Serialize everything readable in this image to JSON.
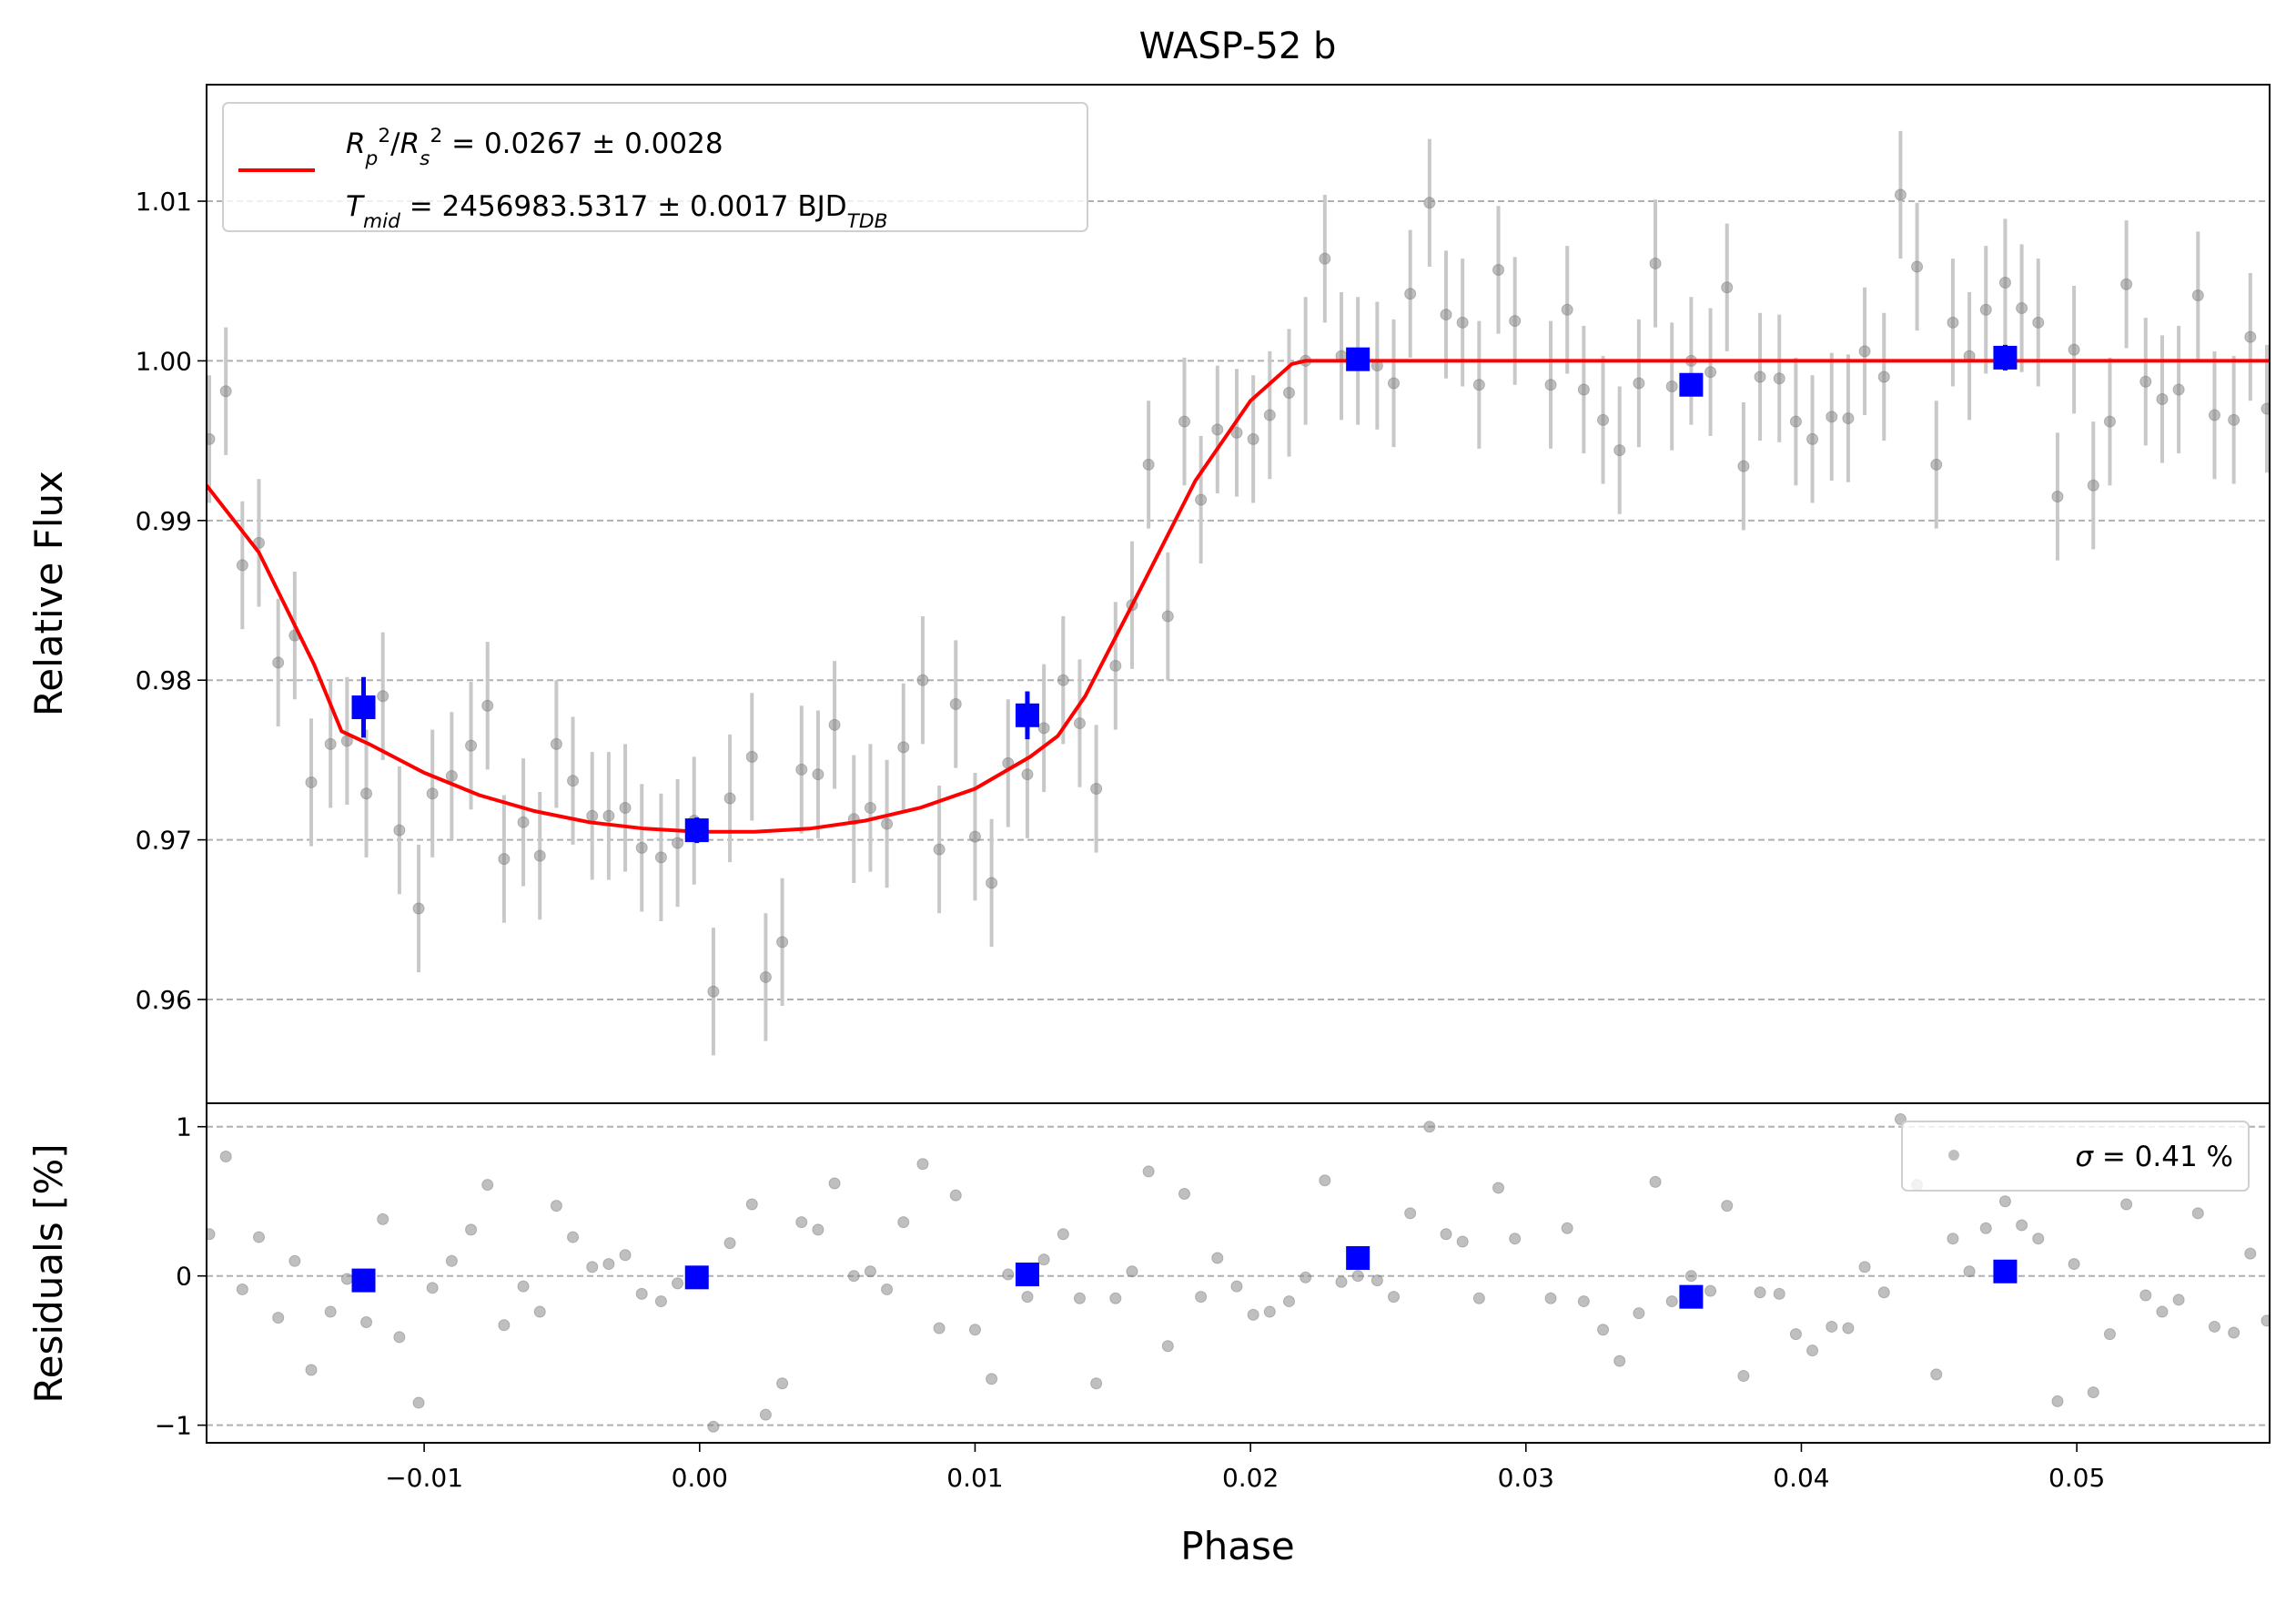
{
  "chart_data": [
    {
      "type": "scatter",
      "title": "WASP-52 b",
      "ylabel": "Relative Flux",
      "xlim": [
        -0.0179,
        0.057
      ],
      "ylim": [
        0.9535,
        1.0173
      ],
      "yticks": [
        {
          "value": 0.96,
          "label": "0.96"
        },
        {
          "value": 0.97,
          "label": "0.97"
        },
        {
          "value": 0.98,
          "label": "0.98"
        },
        {
          "value": 0.99,
          "label": "0.99"
        },
        {
          "value": 1.0,
          "label": "1.00"
        },
        {
          "value": 1.01,
          "label": "1.01"
        }
      ],
      "grid": true,
      "legend": "upper left",
      "series": [
        {
          "color": "#808080",
          "error": 0.004,
          "x": [
            -0.0178,
            -0.0172,
            -0.0166,
            -0.016,
            -0.0153,
            -0.0147,
            -0.0141,
            -0.0134,
            -0.0128,
            -0.0121,
            -0.0115,
            -0.0109,
            -0.0102,
            -0.0097,
            -0.009,
            -0.0083,
            -0.0077,
            -0.0071,
            -0.0064,
            -0.0058,
            -0.0052,
            -0.0046,
            -0.0039,
            -0.0033,
            -0.0027,
            -0.0021,
            -0.0014,
            -0.0008,
            -0.0002,
            0.0005,
            0.0011,
            0.0019,
            0.0024,
            0.003,
            0.0037,
            0.0043,
            0.0049,
            0.0056,
            0.0062,
            0.0068,
            0.0074,
            0.0081,
            0.0087,
            0.0093,
            0.01,
            0.0106,
            0.0112,
            0.0119,
            0.0125,
            0.0132,
            0.0138,
            0.0144,
            0.0151,
            0.0157,
            0.0163,
            0.017,
            0.0176,
            0.0182,
            0.0188,
            0.0195,
            0.0201,
            0.0207,
            0.0214,
            0.022,
            0.0227,
            0.0233,
            0.0239,
            0.0246,
            0.0252,
            0.0258,
            0.0265,
            0.0271,
            0.0277,
            0.0283,
            0.029,
            0.0296,
            0.0309,
            0.0315,
            0.0321,
            0.0328,
            0.0334,
            0.0341,
            0.0347,
            0.0353,
            0.036,
            0.0367,
            0.0373,
            0.0379,
            0.0385,
            0.0392,
            0.0398,
            0.0404,
            0.0411,
            0.0417,
            0.0423,
            0.043,
            0.0436,
            0.0442,
            0.0449,
            0.0455,
            0.0461,
            0.0467,
            0.0474,
            0.048,
            0.0486,
            0.0493,
            0.0499,
            0.0506,
            0.0512,
            0.0518,
            0.0525,
            0.0531,
            0.0537,
            0.0544,
            0.055,
            0.0557,
            0.0563,
            0.0569
          ],
          "values": [
            0.9951,
            0.9981,
            0.9872,
            0.9886,
            0.9811,
            0.9828,
            0.9736,
            0.976,
            0.9762,
            0.9729,
            0.979,
            0.9706,
            0.9657,
            0.9729,
            0.974,
            0.9759,
            0.9784,
            0.9688,
            0.9711,
            0.969,
            0.976,
            0.9737,
            0.9715,
            0.9715,
            0.972,
            0.9695,
            0.9689,
            0.9698,
            0.9712,
            0.9605,
            0.9726,
            0.9752,
            0.9614,
            0.9636,
            0.9744,
            0.9741,
            0.9772,
            0.9713,
            0.972,
            0.971,
            0.9758,
            0.98,
            0.9694,
            0.9785,
            0.9702,
            0.9673,
            0.9748,
            0.9741,
            0.977,
            0.98,
            0.9773,
            0.9732,
            0.9809,
            0.9847,
            0.9935,
            0.984,
            0.9962,
            0.9913,
            0.9957,
            0.9955,
            0.9951,
            0.9966,
            0.998,
            1.0,
            1.0064,
            1.0003,
            1.0,
            0.9997,
            0.9986,
            1.0042,
            1.0099,
            1.0029,
            1.0024,
            0.9985,
            1.0057,
            1.0025,
            0.9985,
            1.0032,
            0.9982,
            0.9963,
            0.9944,
            0.9986,
            1.0061,
            0.9984,
            1.0,
            0.9993,
            1.0046,
            0.9934,
            0.999,
            0.9989,
            0.9962,
            0.9951,
            0.9965,
            0.9964,
            1.0006,
            0.999,
            1.0104,
            1.0059,
            0.9935,
            1.0024,
            1.0003,
            1.0032,
            1.0049,
            1.0033,
            1.0024,
            0.9915,
            1.0007,
            0.9922,
            0.9962,
            1.0048,
            0.9987,
            0.9976,
            0.9982,
            1.0041,
            0.9966,
            0.9963,
            1.0015,
            0.997
          ]
        },
        {
          "color": "#0000ff",
          "x": [
            -0.0122,
            -0.0001,
            0.0119,
            0.0239,
            0.036,
            0.0474
          ],
          "values": [
            0.9783,
            0.9706,
            0.9778,
            1.0001,
            0.9985,
            1.0002
          ],
          "errors": [
            0.0019,
            0.0008,
            0.0015,
            0.0007,
            0.0007,
            0.0008
          ]
        },
        {
          "type": "line",
          "color": "#ff0000",
          "name": [
            [
              {
                "text": "R",
                "font": "italic"
              },
              {
                "text": "p",
                "font": "italic",
                "shift": "sub"
              },
              {
                "text": "2",
                "shift": "super"
              },
              {
                "text": "/"
              },
              {
                "text": "R",
                "font": "italic"
              },
              {
                "text": "s",
                "font": "italic",
                "shift": "sub"
              },
              {
                "text": "2",
                "shift": "super"
              },
              {
                "text": " = 0.0267 ± 0.0028"
              }
            ],
            [
              {
                "text": "T",
                "font": "italic"
              },
              {
                "text": "mid",
                "font": "italic",
                "shift": "sub"
              },
              {
                "text": " = 2456983.5317 ± 0.0017 BJD"
              },
              {
                "text": "TDB",
                "font": "italic",
                "shift": "sub"
              }
            ]
          ],
          "x": [
            -0.0179,
            -0.016,
            -0.014,
            -0.013,
            -0.012,
            -0.01,
            -0.008,
            -0.006,
            -0.004,
            -0.002,
            0.0,
            0.002,
            0.004,
            0.006,
            0.008,
            0.01,
            0.012,
            0.013,
            0.014,
            0.016,
            0.018,
            0.02,
            0.0215,
            0.022,
            0.057
          ],
          "values": [
            0.9922,
            0.988,
            0.981,
            0.9768,
            0.976,
            0.9742,
            0.9728,
            0.9718,
            0.9711,
            0.9707,
            0.9705,
            0.9705,
            0.9707,
            0.9712,
            0.972,
            0.9732,
            0.9752,
            0.9765,
            0.979,
            0.9857,
            0.9925,
            0.9975,
            0.9998,
            1.0,
            1.0
          ]
        }
      ]
    },
    {
      "type": "scatter",
      "xlabel": "Phase",
      "ylabel": "Residuals [%]",
      "xlim": [
        -0.0179,
        0.057
      ],
      "ylim": [
        -1.118,
        1.157
      ],
      "xticks": [
        {
          "value": -0.01,
          "label": "−0.01"
        },
        {
          "value": 0.0,
          "label": "0.00"
        },
        {
          "value": 0.01,
          "label": "0.01"
        },
        {
          "value": 0.02,
          "label": "0.02"
        },
        {
          "value": 0.03,
          "label": "0.03"
        },
        {
          "value": 0.04,
          "label": "0.04"
        },
        {
          "value": 0.05,
          "label": "0.05"
        }
      ],
      "yticks": [
        {
          "value": -1,
          "label": "−1"
        },
        0,
        1
      ],
      "grid": true,
      "legend": "upper right",
      "series": [
        {
          "color": "#808080",
          "name": [
            [
              {
                "text": "σ",
                "font": "italic"
              },
              {
                "text": " = 0.41 %"
              }
            ]
          ],
          "values": [
            0.28,
            0.8,
            -0.09,
            0.26,
            -0.28,
            0.1,
            -0.63,
            -0.24,
            -0.02,
            -0.31,
            0.38,
            -0.41,
            -0.85,
            -0.08,
            0.1,
            0.31,
            0.61,
            -0.33,
            -0.07,
            -0.24,
            0.47,
            0.26,
            0.06,
            0.08,
            0.14,
            -0.12,
            -0.17,
            -0.05,
            0.0,
            -1.01,
            0.22,
            0.48,
            -0.93,
            -0.72,
            0.36,
            0.31,
            0.62,
            0.0,
            0.03,
            -0.09,
            0.36,
            0.75,
            -0.35,
            0.54,
            -0.36,
            -0.69,
            0.01,
            -0.14,
            0.11,
            0.28,
            -0.15,
            -0.72,
            -0.15,
            0.03,
            0.7,
            -0.47,
            0.55,
            -0.14,
            0.12,
            -0.07,
            -0.26,
            -0.24,
            -0.17,
            -0.01,
            0.64,
            -0.04,
            0.0,
            -0.03,
            -0.14,
            0.42,
            1.0,
            0.28,
            0.23,
            -0.15,
            0.59,
            0.25,
            -0.15,
            0.32,
            -0.17,
            -0.36,
            -0.57,
            -0.25,
            0.63,
            -0.17,
            0.0,
            -0.1,
            0.47,
            -0.67,
            -0.11,
            -0.12,
            -0.39,
            -0.5,
            -0.34,
            -0.35,
            0.06,
            -0.11,
            1.05,
            0.61,
            -0.66,
            0.25,
            0.03,
            0.32,
            0.5,
            0.34,
            0.25,
            -0.84,
            0.08,
            -0.78,
            -0.39,
            0.48,
            -0.13,
            -0.24,
            -0.16,
            0.42,
            -0.34,
            -0.38,
            0.15,
            -0.3
          ]
        },
        {
          "color": "#0000ff",
          "values": [
            -0.03,
            -0.01,
            0.01,
            0.12,
            -0.14,
            0.03
          ]
        }
      ]
    }
  ]
}
